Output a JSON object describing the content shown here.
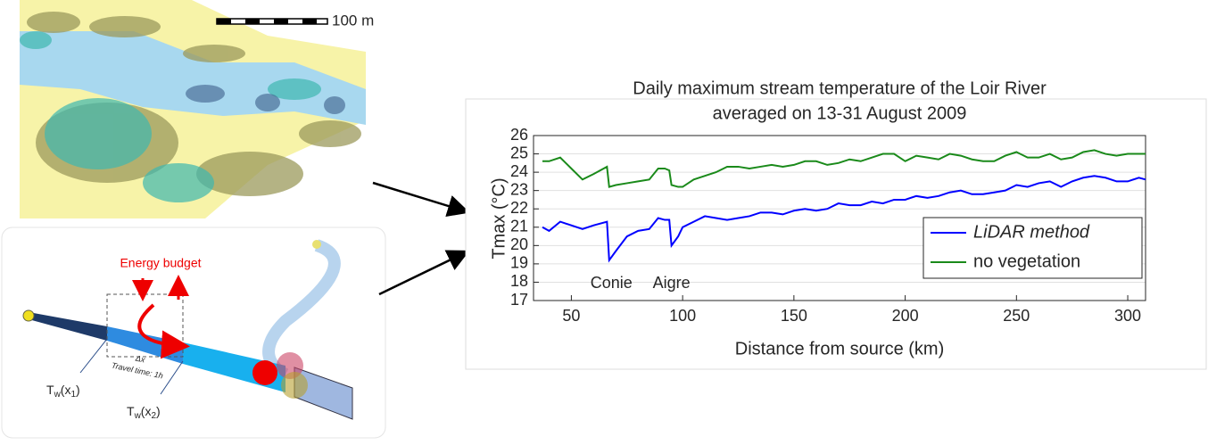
{
  "map": {
    "scale_label": "100 m"
  },
  "diagram": {
    "energy_label": "Energy budget",
    "dx_label": "Δx",
    "travel_label": "Travel time: 1h",
    "tw1": [
      "T",
      "w",
      "(x",
      "1",
      ")"
    ],
    "tw2": [
      "T",
      "w",
      "(x",
      "2",
      ")"
    ]
  },
  "chart_data": {
    "type": "line",
    "title": [
      "Daily maximum stream temperature of the Loir River",
      "averaged on 13-31 August 2009"
    ],
    "x_label": "Distance from source (km)",
    "y_label": "Tmax (°C)",
    "xlim": [
      33,
      308
    ],
    "xticks": [
      50,
      100,
      150,
      200,
      250,
      300
    ],
    "ylim": [
      17,
      26
    ],
    "yticks": [
      17,
      18,
      19,
      20,
      21,
      22,
      23,
      24,
      25,
      26
    ],
    "grid": true,
    "legend": "lower right",
    "annotations": [
      {
        "text": "Conie",
        "x": 68
      },
      {
        "text": "Aigre",
        "x": 95
      }
    ],
    "x": [
      37,
      40,
      45,
      50,
      55,
      60,
      66,
      67,
      70,
      75,
      80,
      85,
      89,
      92,
      94,
      95,
      98,
      100,
      105,
      110,
      115,
      120,
      125,
      130,
      135,
      140,
      145,
      150,
      155,
      160,
      165,
      170,
      175,
      180,
      185,
      190,
      195,
      200,
      205,
      210,
      215,
      220,
      225,
      230,
      235,
      240,
      245,
      250,
      255,
      260,
      265,
      270,
      275,
      280,
      285,
      290,
      295,
      300,
      305,
      308
    ],
    "series": [
      {
        "name": "LiDAR method",
        "color": "#0000ff",
        "italic": true,
        "values": [
          21.0,
          20.8,
          21.3,
          21.1,
          20.9,
          21.1,
          21.3,
          19.2,
          19.7,
          20.5,
          20.8,
          20.9,
          21.5,
          21.4,
          21.4,
          20.0,
          20.5,
          21.0,
          21.3,
          21.6,
          21.5,
          21.4,
          21.5,
          21.6,
          21.8,
          21.8,
          21.7,
          21.9,
          22.0,
          21.9,
          22.0,
          22.3,
          22.2,
          22.2,
          22.4,
          22.3,
          22.5,
          22.5,
          22.7,
          22.6,
          22.7,
          22.9,
          23.0,
          22.8,
          22.8,
          22.9,
          23.0,
          23.3,
          23.2,
          23.4,
          23.5,
          23.2,
          23.5,
          23.7,
          23.8,
          23.7,
          23.5,
          23.5,
          23.7,
          23.6
        ]
      },
      {
        "name": "no vegetation",
        "color": "#1a8a1a",
        "italic": false,
        "values": [
          24.6,
          24.6,
          24.8,
          24.2,
          23.6,
          23.9,
          24.3,
          23.2,
          23.3,
          23.4,
          23.5,
          23.6,
          24.2,
          24.2,
          24.1,
          23.3,
          23.2,
          23.2,
          23.6,
          23.8,
          24.0,
          24.3,
          24.3,
          24.2,
          24.3,
          24.4,
          24.3,
          24.4,
          24.6,
          24.6,
          24.4,
          24.5,
          24.7,
          24.6,
          24.8,
          25.0,
          25.0,
          24.6,
          24.9,
          24.8,
          24.7,
          25.0,
          24.9,
          24.7,
          24.6,
          24.6,
          24.9,
          25.1,
          24.8,
          24.8,
          25.0,
          24.7,
          24.8,
          25.1,
          25.2,
          25.0,
          24.9,
          25.0,
          25.0,
          25.0
        ]
      }
    ]
  }
}
